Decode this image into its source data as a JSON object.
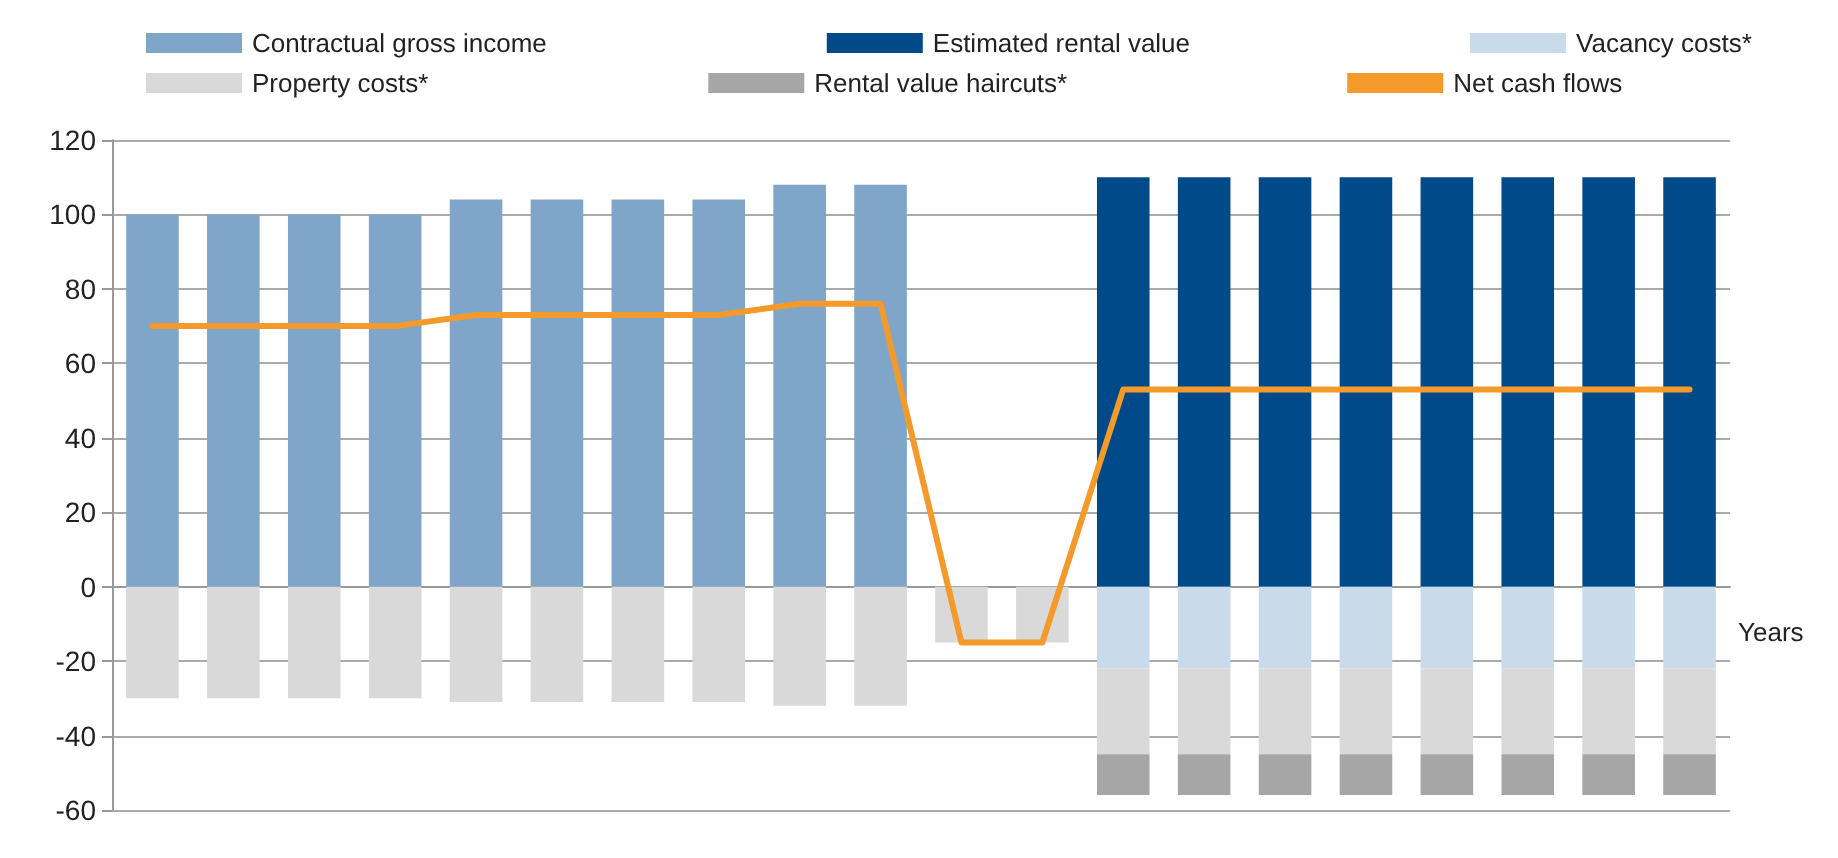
{
  "chart_data": {
    "type": "bar",
    "stacked": true,
    "xlabel": "Years",
    "categories": [
      null,
      null,
      null,
      null,
      null,
      null,
      null,
      null,
      null,
      null,
      null,
      null,
      null,
      null,
      null,
      null,
      null,
      null,
      null,
      null
    ],
    "series": [
      {
        "name": "Contractual gross income",
        "color": "#7fa5c8",
        "values": [
          100,
          100,
          100,
          100,
          104,
          104,
          104,
          104,
          108,
          108,
          null,
          null,
          null,
          null,
          null,
          null,
          null,
          null,
          null,
          null
        ]
      },
      {
        "name": "Estimated rental value",
        "color": "#004a8a",
        "values": [
          null,
          null,
          null,
          null,
          null,
          null,
          null,
          null,
          null,
          null,
          null,
          null,
          110,
          110,
          110,
          110,
          110,
          110,
          110,
          110
        ]
      },
      {
        "name": "Vacancy costs*",
        "color": "#c9dbea",
        "values": [
          null,
          null,
          null,
          null,
          null,
          null,
          null,
          null,
          null,
          null,
          null,
          null,
          -22,
          -22,
          -22,
          -22,
          -22,
          -22,
          -22,
          -22
        ]
      },
      {
        "name": "Property costs*",
        "color": "#d9d9d9",
        "values": [
          -30,
          -30,
          -30,
          -30,
          -31,
          -31,
          -31,
          -31,
          -32,
          -32,
          -15,
          -15,
          -23,
          -23,
          -23,
          -23,
          -23,
          -23,
          -23,
          -23
        ]
      },
      {
        "name": "Rental value haircuts*",
        "color": "#a6a6a6",
        "values": [
          null,
          null,
          null,
          null,
          null,
          null,
          null,
          null,
          null,
          null,
          null,
          null,
          -11,
          -11,
          -11,
          -11,
          -11,
          -11,
          -11,
          -11
        ]
      },
      {
        "name": "Net cash flows",
        "type": "line",
        "color": "#f39a2b",
        "values": [
          70,
          70,
          70,
          70,
          73,
          73,
          73,
          73,
          76,
          76,
          -15,
          -15,
          53,
          53,
          53,
          53,
          53,
          53,
          53,
          53
        ]
      }
    ],
    "ylim": [
      -60,
      120
    ],
    "yticks": [
      -60,
      -40,
      -20,
      0,
      20,
      40,
      60,
      80,
      100,
      120
    ],
    "grid": "y",
    "legend": "top",
    "tick_labels": "y",
    "marker": "none",
    "line_style": "solid"
  }
}
